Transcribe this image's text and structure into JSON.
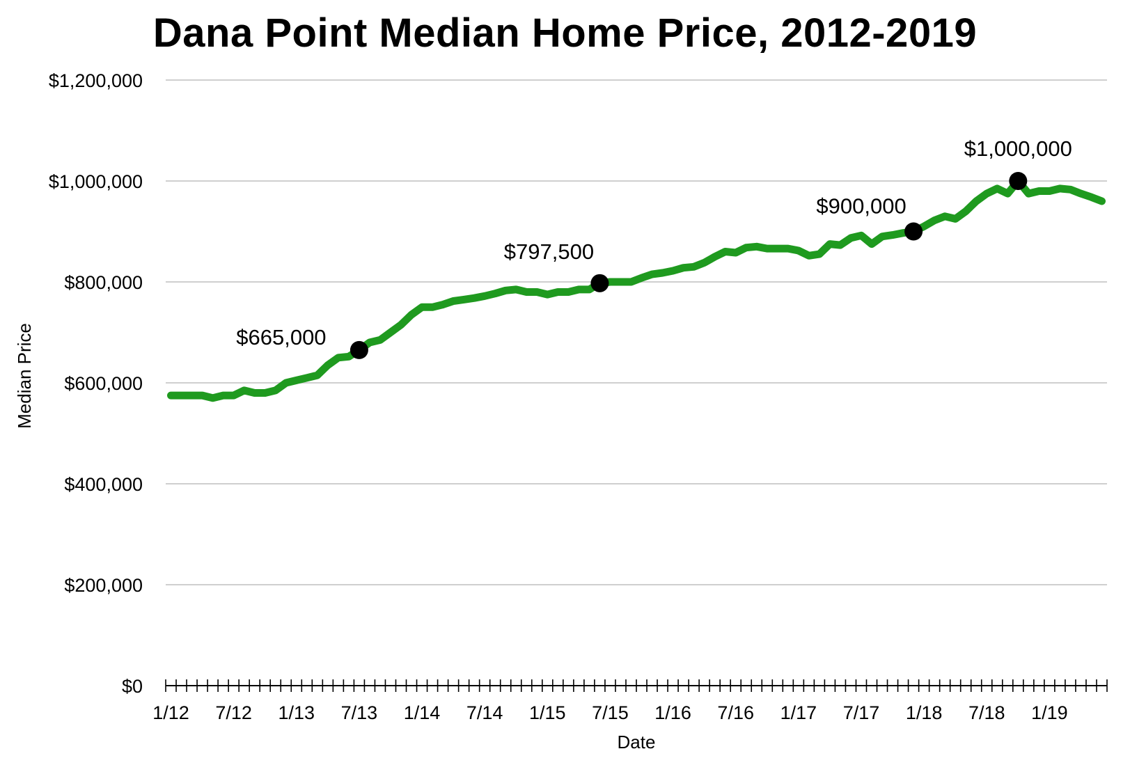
{
  "chart_data": {
    "type": "line",
    "title": "Dana Point Median Home Price, 2012-2019",
    "xlabel": "Date",
    "ylabel": "Median Price",
    "ylim": [
      0,
      1200000
    ],
    "y_ticks": [
      {
        "value": 0,
        "label": "$0"
      },
      {
        "value": 200000,
        "label": "$200,000"
      },
      {
        "value": 400000,
        "label": "$400,000"
      },
      {
        "value": 600000,
        "label": "$600,000"
      },
      {
        "value": 800000,
        "label": "$800,000"
      },
      {
        "value": 1000000,
        "label": "$1,000,000"
      },
      {
        "value": 1200000,
        "label": "$1,200,000"
      }
    ],
    "x_ticks": [
      "1/12",
      "7/12",
      "1/13",
      "7/13",
      "1/14",
      "7/14",
      "1/15",
      "7/15",
      "1/16",
      "7/16",
      "1/17",
      "7/17",
      "1/18",
      "7/18",
      "1/19"
    ],
    "grid": true,
    "line_color": "#1f9a1f",
    "series": [
      {
        "x": [
          "2012-01",
          "2012-02",
          "2012-03",
          "2012-04",
          "2012-05",
          "2012-06",
          "2012-07",
          "2012-08",
          "2012-09",
          "2012-10",
          "2012-11",
          "2012-12",
          "2013-01",
          "2013-02",
          "2013-03",
          "2013-04",
          "2013-05",
          "2013-06",
          "2013-07",
          "2013-08",
          "2013-09",
          "2013-10",
          "2013-11",
          "2013-12",
          "2014-01",
          "2014-02",
          "2014-03",
          "2014-04",
          "2014-05",
          "2014-06",
          "2014-07",
          "2014-08",
          "2014-09",
          "2014-10",
          "2014-11",
          "2014-12",
          "2015-01",
          "2015-02",
          "2015-03",
          "2015-04",
          "2015-05",
          "2015-06",
          "2015-07",
          "2015-08",
          "2015-09",
          "2015-10",
          "2015-11",
          "2015-12",
          "2016-01",
          "2016-02",
          "2016-03",
          "2016-04",
          "2016-05",
          "2016-06",
          "2016-07",
          "2016-08",
          "2016-09",
          "2016-10",
          "2016-11",
          "2016-12",
          "2017-01",
          "2017-02",
          "2017-03",
          "2017-04",
          "2017-05",
          "2017-06",
          "2017-07",
          "2017-08",
          "2017-09",
          "2017-10",
          "2017-11",
          "2017-12",
          "2018-01",
          "2018-02",
          "2018-03",
          "2018-04",
          "2018-05",
          "2018-06",
          "2018-07",
          "2018-08",
          "2018-09",
          "2018-10",
          "2018-11",
          "2018-12",
          "2019-01",
          "2019-02",
          "2019-03",
          "2019-04",
          "2019-05",
          "2019-06"
        ],
        "values": [
          575000,
          575000,
          575000,
          575000,
          570000,
          575000,
          575000,
          585000,
          580000,
          580000,
          585000,
          600000,
          605000,
          610000,
          615000,
          635000,
          650000,
          652000,
          665000,
          680000,
          685000,
          700000,
          715000,
          735000,
          750000,
          750000,
          755000,
          762000,
          765000,
          768000,
          772000,
          777000,
          783000,
          785000,
          780000,
          780000,
          775000,
          780000,
          780000,
          785000,
          785000,
          797500,
          800000,
          800000,
          800000,
          808000,
          815000,
          818000,
          822000,
          828000,
          830000,
          838000,
          850000,
          860000,
          858000,
          868000,
          870000,
          866000,
          866000,
          866000,
          862000,
          852000,
          855000,
          875000,
          873000,
          887000,
          892000,
          875000,
          890000,
          893000,
          897000,
          900000,
          910000,
          922000,
          930000,
          925000,
          940000,
          960000,
          975000,
          985000,
          975000,
          1000000,
          975000,
          980000,
          980000,
          985000,
          983000,
          975000,
          968000,
          960000
        ]
      }
    ],
    "annotations": [
      {
        "x": "2013-07",
        "y": 665000,
        "label": "$665,000"
      },
      {
        "x": "2015-06",
        "y": 797500,
        "label": "$797,500"
      },
      {
        "x": "2017-12",
        "y": 900000,
        "label": "$900,000"
      },
      {
        "x": "2018-10",
        "y": 1000000,
        "label": "$1,000,000"
      }
    ]
  }
}
